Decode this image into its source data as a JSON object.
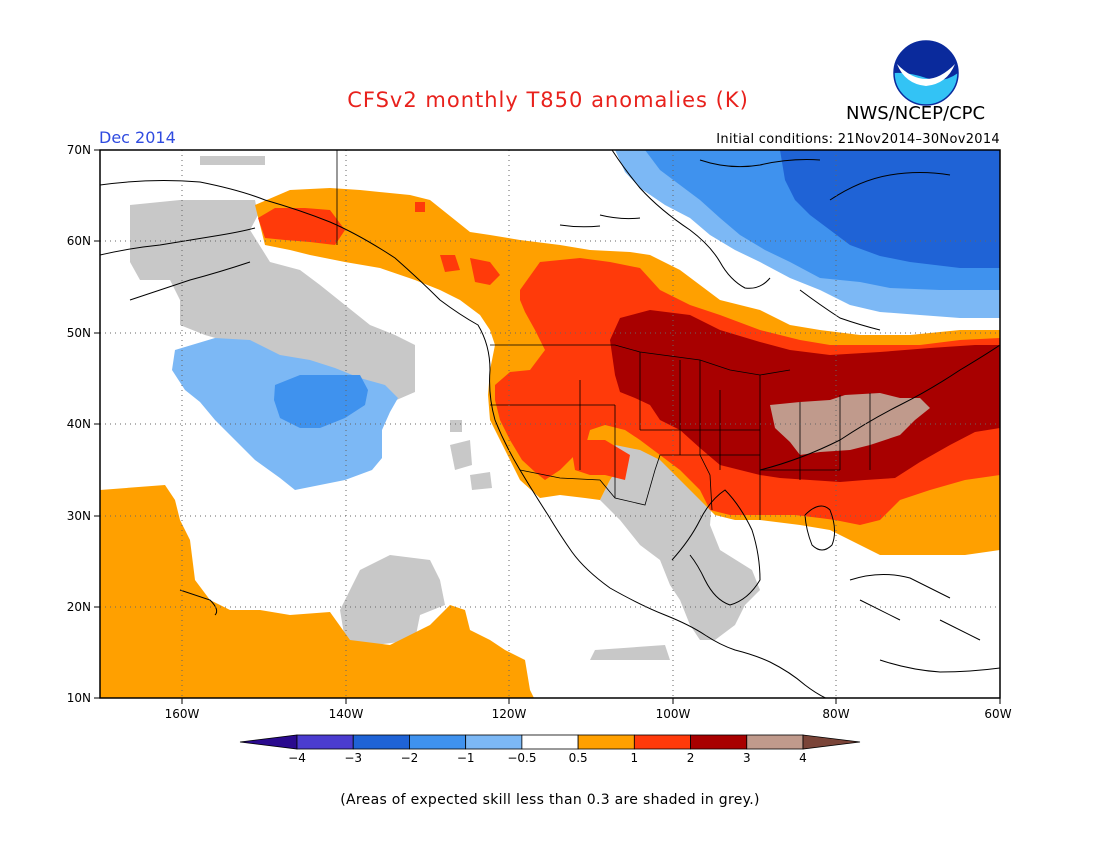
{
  "title": "CFSv2 monthly T850 anomalies (K)",
  "forecast_month": "Dec 2014",
  "initial_conditions": "Initial conditions: 21Nov2014–30Nov2014",
  "agency": "NWS/NCEP/CPC",
  "logo_text": "NOAA",
  "footnote": "(Areas of expected skill less than 0.3 are shaded in grey.)",
  "lat_labels": [
    "70N",
    "60N",
    "50N",
    "40N",
    "30N",
    "20N",
    "10N"
  ],
  "lon_labels": [
    "160W",
    "140W",
    "120W",
    "100W",
    "80W",
    "60W"
  ],
  "colorbar": {
    "labels": [
      "−4",
      "−3",
      "−2",
      "−1",
      "−0.5",
      "0.5",
      "1",
      "2",
      "3",
      "4"
    ],
    "colors": [
      "#2a0a8e",
      "#4b3ccf",
      "#1f63d6",
      "#3f92ee",
      "#7cb8f5",
      "#ffffff",
      "#ffa000",
      "#ff3a0a",
      "#a80000",
      "#c09a8c",
      "#7a4438"
    ]
  },
  "colors": {
    "title": "#e8211c",
    "month": "#2f4be0",
    "grey_low_skill": "#c8c8c8",
    "orange": "#ffa000",
    "red": "#ff3a0a",
    "dark_red": "#a80000",
    "brown": "#c09a8c",
    "light_blue": "#7cb8f5",
    "blue": "#3f92ee",
    "mid_blue": "#1f63d6"
  }
}
